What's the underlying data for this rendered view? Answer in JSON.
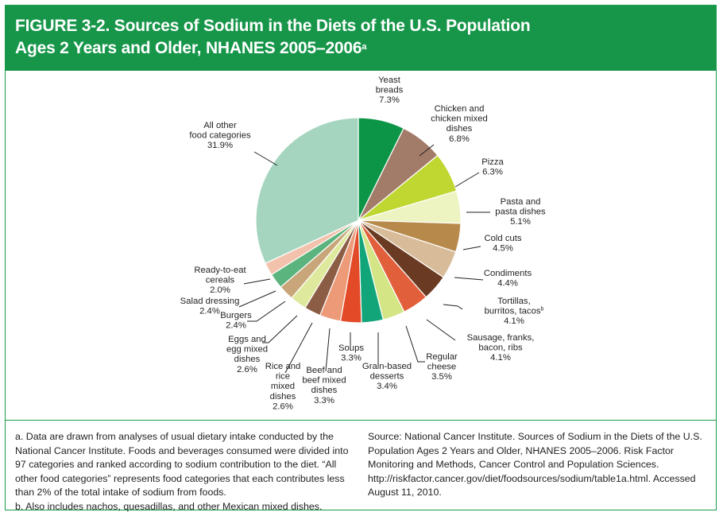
{
  "header": {
    "title_line1": "FIGURE 3-2. Sources of Sodium in the Diets of the U.S. Population",
    "title_line2": "Ages 2 Years and Older, NHANES 2005–2006",
    "title_note": "a"
  },
  "chart_data": {
    "type": "pie",
    "unit": "%",
    "slices": [
      {
        "label": [
          "Yeast",
          "breads"
        ],
        "value": 7.3,
        "value_text": "7.3%",
        "color": "#0c9547"
      },
      {
        "label": [
          "Chicken and",
          "chicken mixed",
          "dishes"
        ],
        "value": 6.8,
        "value_text": "6.8%",
        "color": "#a37b69"
      },
      {
        "label": [
          "Pizza"
        ],
        "value": 6.3,
        "value_text": "6.3%",
        "color": "#bfd730"
      },
      {
        "label": [
          "Pasta and",
          "pasta dishes"
        ],
        "value": 5.1,
        "value_text": "5.1%",
        "color": "#eef3c2"
      },
      {
        "label": [
          "Cold cuts"
        ],
        "value": 4.5,
        "value_text": "4.5%",
        "color": "#b78a4c"
      },
      {
        "label": [
          "Condiments"
        ],
        "value": 4.4,
        "value_text": "4.4%",
        "color": "#d8bc99"
      },
      {
        "label": [
          "Tortillas,",
          "burritos, tacos"
        ],
        "label_note": "b",
        "value": 4.1,
        "value_text": "4.1%",
        "color": "#6a3b22"
      },
      {
        "label": [
          "Sausage, franks,",
          "bacon, ribs"
        ],
        "value": 4.1,
        "value_text": "4.1%",
        "color": "#e1603b"
      },
      {
        "label": [
          "Regular",
          "cheese"
        ],
        "value": 3.5,
        "value_text": "3.5%",
        "color": "#d4e586"
      },
      {
        "label": [
          "Grain-based",
          "desserts"
        ],
        "value": 3.4,
        "value_text": "3.4%",
        "color": "#13a57a"
      },
      {
        "label": [
          "Soups"
        ],
        "value": 3.3,
        "value_text": "3.3%",
        "color": "#e24a28"
      },
      {
        "label": [
          "Beef and",
          "beef mixed",
          "dishes"
        ],
        "value": 3.3,
        "value_text": "3.3%",
        "color": "#ec9a78"
      },
      {
        "label": [
          "Rice and",
          "rice",
          "mixed",
          "dishes"
        ],
        "value": 2.6,
        "value_text": "2.6%",
        "color": "#8b5d45"
      },
      {
        "label": [
          "Eggs and",
          "egg mixed",
          "dishes"
        ],
        "value": 2.6,
        "value_text": "2.6%",
        "color": "#dfe99e"
      },
      {
        "label": [
          "Burgers"
        ],
        "value": 2.4,
        "value_text": "2.4%",
        "color": "#c8a67a"
      },
      {
        "label": [
          "Salad dressing"
        ],
        "value": 2.4,
        "value_text": "2.4%",
        "color": "#5bb47d"
      },
      {
        "label": [
          "Ready-to-eat",
          "cereals"
        ],
        "value": 2.0,
        "value_text": "2.0%",
        "color": "#f3c2ad"
      },
      {
        "label": [
          "All other",
          "food categories"
        ],
        "value": 31.9,
        "value_text": "31.9%",
        "color": "#a5d5bf"
      }
    ]
  },
  "notes": {
    "left": [
      "a. Data are drawn from analyses of usual dietary intake conducted by the National Cancer Institute. Foods and beverages consumed were divided into 97 categories and ranked according to sodium contribution to the diet. “All other food categories” represents food categories that each contributes less than 2% of the total intake of sodium from foods.",
      "b. Also includes nachos, quesadillas, and other Mexican mixed dishes."
    ],
    "right": "Source: National Cancer Institute. Sources of Sodium in the Diets of the U.S. Population Ages 2 Years and Older, NHANES 2005–2006. Risk Factor Monitoring and Methods, Cancer Control and Population Sciences. http://riskfactor.cancer.gov/diet/foodsources/sodium/table1a.html. Accessed August 11, 2010."
  }
}
